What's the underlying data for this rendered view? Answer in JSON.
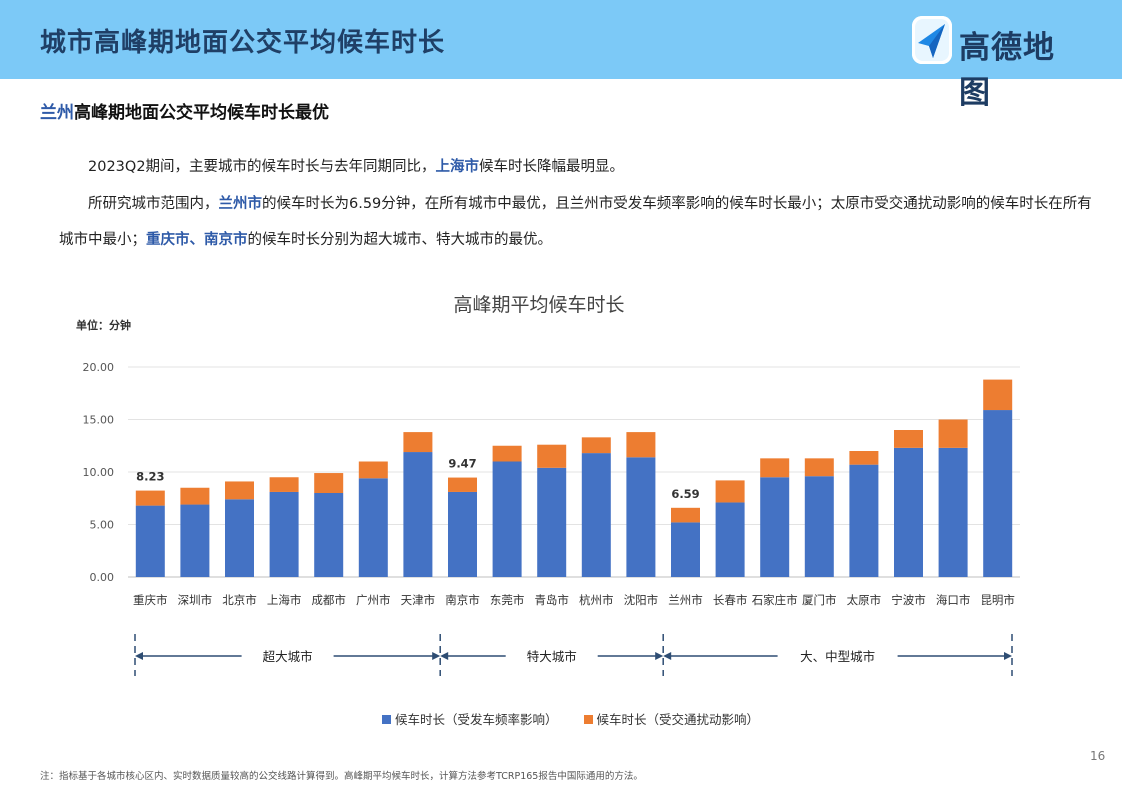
{
  "header": {
    "title": "城市高峰期地面公交平均候车时长",
    "logo_text": "高德地图",
    "logo_icon": "navigation-arrow-icon"
  },
  "subtitle": {
    "highlight": "兰州",
    "rest": "高峰期地面公交平均候车时长最优"
  },
  "paragraphs": {
    "p1_a": "2023Q2期间，主要城市的候车时长与去年同期同比，",
    "p1_b": "上海市",
    "p1_c": "候车时长降幅最明显。",
    "p2_a": "所研究城市范围内，",
    "p2_b": "兰州市",
    "p2_c": "的候车时长为6.59分钟，在所有城市中最优，且兰州市受发车频率影响的候车时长最小；太原市受交通扰动影响的候车时长在所有",
    "p3_a": "城市中最小；",
    "p3_b": "重庆市、南京市",
    "p3_c": "的候车时长分别为超大城市、特大城市的最优。"
  },
  "chart_data": {
    "type": "bar",
    "stacked": true,
    "title": "高峰期平均候车时长",
    "unit_label": "单位：分钟",
    "categories": [
      "重庆市",
      "深圳市",
      "北京市",
      "上海市",
      "成都市",
      "广州市",
      "天津市",
      "南京市",
      "东莞市",
      "青岛市",
      "杭州市",
      "沈阳市",
      "兰州市",
      "长春市",
      "石家庄市",
      "厦门市",
      "太原市",
      "宁波市",
      "海口市",
      "昆明市"
    ],
    "series": [
      {
        "name": "候车时长（受发车频率影响）",
        "color": "#4472c4",
        "values": [
          6.8,
          6.9,
          7.4,
          8.1,
          8.0,
          9.4,
          11.9,
          8.1,
          11.0,
          10.4,
          11.8,
          11.4,
          5.2,
          7.1,
          9.5,
          9.6,
          10.7,
          12.3,
          12.3,
          15.9
        ]
      },
      {
        "name": "候车时长（受交通扰动影响）",
        "color": "#ed7d31",
        "values": [
          1.43,
          1.6,
          1.7,
          1.4,
          1.9,
          1.6,
          1.9,
          1.37,
          1.5,
          2.2,
          1.5,
          2.4,
          1.39,
          2.1,
          1.8,
          1.7,
          1.3,
          1.7,
          2.7,
          2.9
        ]
      }
    ],
    "data_labels": [
      {
        "category": "重庆市",
        "text": "8.23"
      },
      {
        "category": "南京市",
        "text": "9.47"
      },
      {
        "category": "兰州市",
        "text": "6.59"
      }
    ],
    "ylim": [
      0,
      20
    ],
    "yticks": [
      "0.00",
      "5.00",
      "10.00",
      "15.00",
      "20.00"
    ],
    "groups": [
      {
        "label": "超大城市",
        "from": "重庆市",
        "to": "天津市"
      },
      {
        "label": "特大城市",
        "from": "南京市",
        "to": "沈阳市"
      },
      {
        "label": "大、中型城市",
        "from": "兰州市",
        "to": "昆明市"
      }
    ],
    "grid": true,
    "legend_position": "bottom"
  },
  "footer": {
    "page_number": "16",
    "note": "注：指标基于各城市核心区内、实时数据质量较高的公交线路计算得到。高峰期平均候车时长，计算方法参考TCRP165报告中国际通用的方法。"
  }
}
